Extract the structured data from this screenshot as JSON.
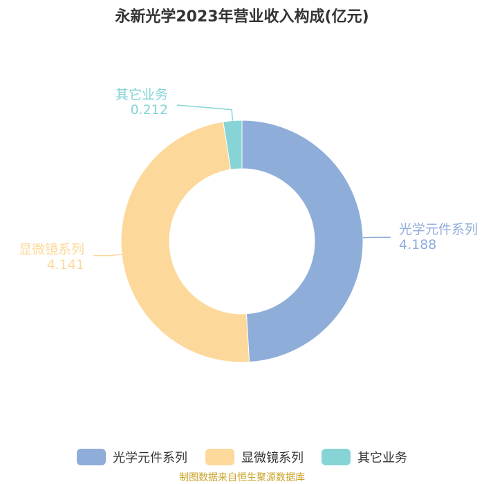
{
  "chart_data": {
    "type": "pie",
    "title": "永新光学2023年营业收入构成(亿元)",
    "categories": [
      "光学元件系列",
      "显微镜系列",
      "其它业务"
    ],
    "values": [
      4.188,
      4.141,
      0.212
    ],
    "value_labels": [
      "4.188",
      "4.141",
      "0.212"
    ],
    "colors": [
      "#8fadd9",
      "#fdd89b",
      "#86d4d6"
    ],
    "donut": true,
    "legend_position": "bottom"
  },
  "footer": {
    "source": "制图数据来自恒生聚源数据库"
  }
}
